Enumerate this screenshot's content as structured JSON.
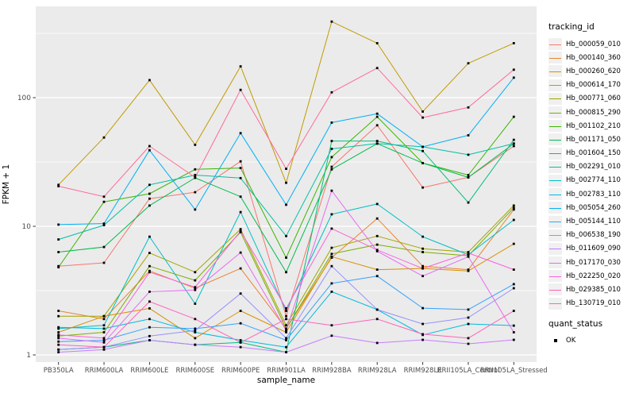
{
  "figure": {
    "background": "#FFFFFF",
    "panel_bg": "#EBEBEB",
    "grid_color": "#FFFFFF",
    "axis_text_color": "#4D4D4D",
    "tick_mark_color": "#333333",
    "point_color": "#000000"
  },
  "axes": {
    "y_title": "FPKM + 1",
    "x_title": "sample_name",
    "y_tick_labels": [
      "1",
      "10",
      "100"
    ]
  },
  "legend": {
    "tracking_title": "tracking_id",
    "quant_title": "quant_status",
    "quant_items": [
      {
        "label": "OK",
        "marker": "black-square"
      }
    ]
  },
  "chart_data": {
    "type": "line",
    "title": "",
    "x_label": "sample_name",
    "y_label": "FPKM + 1",
    "y_scale": "log10",
    "y_ticks": [
      1,
      10,
      100
    ],
    "y_minor_ticks": [
      3.1623,
      31.623,
      316.23
    ],
    "ylim": [
      0.9,
      500
    ],
    "grid": true,
    "legend_position": "right",
    "point_marker": "square-black",
    "categories": [
      "PB350LA",
      "RRIM600LA",
      "RRIM600LE",
      "RRIM600SE",
      "RRIM600PE",
      "RRIM901LA",
      "RRIM928BA",
      "RRIM928LA",
      "RRIM928LE",
      "RRII105LA_Control",
      "RRII105LA_Stressed"
    ],
    "series": [
      {
        "name": "Hb_000059_010",
        "color": "#F8766D",
        "values": [
          4.9,
          5.2,
          16.4,
          18.4,
          32,
          2.0,
          29,
          61,
          20,
          24,
          42
        ]
      },
      {
        "name": "Hb_000140_360",
        "color": "#EA8331",
        "values": [
          2.2,
          1.9,
          4.5,
          3.3,
          4.7,
          1.6,
          5.7,
          11.5,
          4.9,
          4.6,
          13.5
        ]
      },
      {
        "name": "Hb_000260_620",
        "color": "#D89000",
        "values": [
          1.5,
          2.0,
          2.3,
          1.35,
          2.2,
          1.5,
          5.8,
          4.6,
          4.7,
          4.5,
          7.3
        ]
      },
      {
        "name": "Hb_000614_170",
        "color": "#C09B00",
        "values": [
          21,
          49,
          137,
          43,
          175,
          21.8,
          390,
          265,
          78,
          185,
          265
        ]
      },
      {
        "name": "Hb_000771_060",
        "color": "#A3A500",
        "values": [
          2.0,
          2.0,
          6.2,
          4.4,
          9.5,
          1.7,
          6.8,
          8.4,
          6.7,
          6.3,
          14.5
        ]
      },
      {
        "name": "Hb_000815_290",
        "color": "#7CAE00",
        "values": [
          1.4,
          1.5,
          4.9,
          3.8,
          9.0,
          1.6,
          6.1,
          7.2,
          6.3,
          5.9,
          13.9
        ]
      },
      {
        "name": "Hb_001102_210",
        "color": "#39B600",
        "values": [
          4.8,
          15.5,
          17.9,
          27.7,
          28.4,
          5.7,
          34.5,
          71,
          31,
          25,
          71
        ]
      },
      {
        "name": "Hb_001171_050",
        "color": "#00BB4E",
        "values": [
          6.3,
          6.9,
          14.5,
          23.8,
          17,
          4.4,
          27.7,
          44,
          31,
          24,
          44
        ]
      },
      {
        "name": "Hb_001604_150",
        "color": "#00BF7D",
        "values": [
          1.1,
          1.15,
          1.3,
          1.2,
          1.25,
          1.05,
          46,
          46,
          38.5,
          15.3,
          47
        ]
      },
      {
        "name": "Hb_002291_010",
        "color": "#00C1A3",
        "values": [
          7.9,
          10.2,
          21,
          25,
          23.7,
          8.4,
          40,
          44,
          41.5,
          36,
          44
        ]
      },
      {
        "name": "Hb_002774_110",
        "color": "#00BFC4",
        "values": [
          1.6,
          1.7,
          8.3,
          2.5,
          12.9,
          2.2,
          12.4,
          14.9,
          8.3,
          6.0,
          11.2
        ]
      },
      {
        "name": "Hb_002783_110",
        "color": "#00BAE0",
        "values": [
          1.64,
          1.6,
          1.9,
          1.5,
          1.3,
          1.15,
          3.1,
          2.25,
          1.43,
          1.74,
          1.69
        ]
      },
      {
        "name": "Hb_005054_260",
        "color": "#00B0F6",
        "values": [
          10.3,
          10.5,
          39,
          13.5,
          53,
          14.7,
          64,
          75,
          41.5,
          51,
          143
        ]
      },
      {
        "name": "Hb_005144_110",
        "color": "#35A2FF",
        "values": [
          1.27,
          1.3,
          1.64,
          1.6,
          1.76,
          1.3,
          3.6,
          4.1,
          2.31,
          2.25,
          3.55
        ]
      },
      {
        "name": "Hb_006538_190",
        "color": "#9590FF",
        "values": [
          1.1,
          1.15,
          1.4,
          1.55,
          3.0,
          1.35,
          4.9,
          2.25,
          1.74,
          1.95,
          3.3
        ]
      },
      {
        "name": "Hb_011609_090",
        "color": "#C77CFF",
        "values": [
          1.05,
          1.1,
          1.3,
          1.2,
          1.15,
          1.05,
          1.41,
          1.24,
          1.31,
          1.22,
          1.31
        ]
      },
      {
        "name": "Hb_017170_030",
        "color": "#E76BF3",
        "values": [
          1.35,
          1.25,
          3.1,
          3.2,
          6.25,
          1.55,
          18.9,
          6.4,
          4.1,
          5.8,
          1.5
        ]
      },
      {
        "name": "Hb_022250_020",
        "color": "#FA62DB",
        "values": [
          1.43,
          1.35,
          4.4,
          3.36,
          9.2,
          2.3,
          9.6,
          6.55,
          4.7,
          6.2,
          4.6
        ]
      },
      {
        "name": "Hb_029385_010",
        "color": "#FF62BC",
        "values": [
          1.2,
          1.15,
          2.6,
          1.9,
          1.25,
          1.9,
          1.7,
          1.9,
          1.45,
          1.35,
          2.2
        ]
      },
      {
        "name": "Hb_130719_010",
        "color": "#FF6A98",
        "values": [
          20.5,
          17,
          42,
          24,
          115,
          28,
          110,
          170,
          70,
          84,
          165
        ]
      }
    ]
  }
}
